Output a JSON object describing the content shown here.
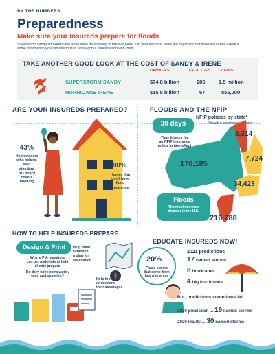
{
  "header": {
    "kicker": "BY THE NUMBERS",
    "title": "Preparedness",
    "subtitle": "Make sure your insureds prepare for floods",
    "intro": "Superstorm Sandy and Hurricane Irene were devastating to the Northeast. Do your insureds know the importance of flood insurance? Here's some information you can use to start a thoughtful conversation with them."
  },
  "cost": {
    "heading": "TAKE ANOTHER GOOD LOOK AT THE COST OF SANDY & IRENE",
    "columns": [
      "DAMAGES",
      "FATALITIES",
      "CLAIMS"
    ],
    "rows": [
      {
        "name": "SUPERSTORM SANDY",
        "damages": "$74.8 billion",
        "fatalities": "285",
        "claims": "1.5 million"
      },
      {
        "name": "HURRICANE IRENE",
        "damages": "$15.8 billion",
        "fatalities": "67",
        "claims": "855,000"
      }
    ]
  },
  "prepared": {
    "heading": "ARE YOUR INSUREDS PREPARED?",
    "stat1_value": "43%",
    "stat1_text": [
      "Homeowners",
      "who believe",
      "their",
      "standard",
      "HO policy",
      "covers",
      "flooding"
    ],
    "stat2_value": "90%",
    "stat2_text": [
      "Homes that",
      "don't have",
      "flood",
      "insurance"
    ]
  },
  "nfip": {
    "heading": "FLOODS AND THE NFIP",
    "policies_title": "NFIP policies by state*",
    "policies_note": "*Includes commercial policies",
    "days_value": "30 days",
    "days_text": [
      "Time it takes for",
      "an NFIP insurance",
      "policy to take effect"
    ],
    "floods_value": "Floods",
    "floods_text": [
      "The most common",
      "disaster in the U.S."
    ],
    "states": {
      "ny": "170,185",
      "vt": "3,314",
      "ma": "7,724",
      "ct": "34,423",
      "nj": "216,788"
    }
  },
  "help": {
    "heading": "HOW TO HELP INSUREDS PREPARE",
    "design_title": "Design & Print",
    "design_text": [
      "Where PIA members",
      "can get materials to help",
      "clients prepare"
    ],
    "supplies_text": [
      "Do they have extra water,",
      "food and supplies?"
    ],
    "plan_text": [
      "Help them",
      "establish",
      "a plan for",
      "evacuation"
    ],
    "coverage_text": [
      "Help them",
      "understand",
      "their coverages"
    ]
  },
  "educate": {
    "heading": "EDUCATE INSUREDS NOW!",
    "stat_value": "20%",
    "stat_text": [
      "Flood claims",
      "that come from",
      "low-risk areas"
    ],
    "predictions_title": "2021 predictions",
    "pred_rows": [
      {
        "num": "17",
        "label": "named storms"
      },
      {
        "num": "8",
        "label": "hurricanes"
      },
      {
        "num": "4",
        "label": "big hurricanes"
      }
    ],
    "fail_text": "But, predictions sometimes fail",
    "pred_2020_label": "2020 prediction ...",
    "pred_2020_num": "16",
    "pred_2020_unit": "named storms",
    "real_2020_label": "2020 reality ...",
    "real_2020_num": "30",
    "real_2020_unit": "named storms!"
  },
  "colors": {
    "navy": "#1f3a5a",
    "orange": "#d94b2b",
    "teal": "#2aa59b",
    "wave": "#7fc4ea"
  }
}
